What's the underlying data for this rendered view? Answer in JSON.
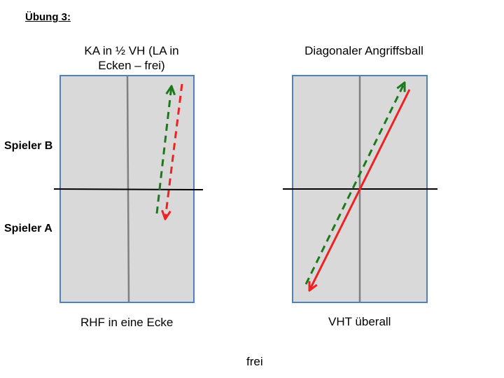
{
  "heading": "Übung 3:",
  "player_labels": {
    "b": "Spieler B",
    "a": "Spieler A"
  },
  "left_diagram": {
    "title": "KA in ½ VH (LA in Ecken – frei)",
    "caption": "RHF in eine Ecke"
  },
  "right_diagram": {
    "title": "Diagonaler Angriffsball",
    "caption": "VHT überall"
  },
  "footer": "frei",
  "colors": {
    "table_fill": "#d9d9d9",
    "table_border": "#4f81bd",
    "center_line": "#808080",
    "net": "#000000",
    "green_arrow": "#1a7a1a",
    "red_arrow": "#ee2222"
  }
}
